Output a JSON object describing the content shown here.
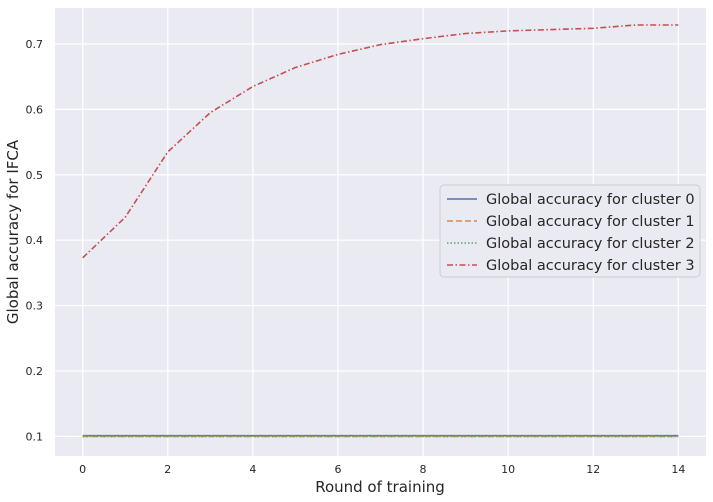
{
  "chart_data": {
    "type": "line",
    "xlabel": "Round of training",
    "ylabel": "Global accuracy for IFCA",
    "xlim": [
      -0.65,
      14.65
    ],
    "ylim": [
      0.07,
      0.755
    ],
    "xticks": [
      0,
      2,
      4,
      6,
      8,
      10,
      12,
      14
    ],
    "yticks": [
      0.1,
      0.2,
      0.3,
      0.4,
      0.5,
      0.6,
      0.7
    ],
    "xtick_labels": [
      "0",
      "2",
      "4",
      "6",
      "8",
      "10",
      "12",
      "14"
    ],
    "ytick_labels": [
      "0.1",
      "0.2",
      "0.3",
      "0.4",
      "0.5",
      "0.6",
      "0.7"
    ],
    "grid": true,
    "legend_position": "center-right",
    "x": [
      0,
      1,
      2,
      3,
      4,
      5,
      6,
      7,
      8,
      9,
      10,
      11,
      12,
      13,
      14
    ],
    "series": [
      {
        "name": "Global accuracy for cluster 0",
        "color": "#4c72b0",
        "dash": "solid",
        "values": [
          0.101,
          0.101,
          0.101,
          0.101,
          0.101,
          0.101,
          0.101,
          0.101,
          0.101,
          0.101,
          0.101,
          0.101,
          0.101,
          0.101,
          0.101
        ]
      },
      {
        "name": "Global accuracy for cluster 1",
        "color": "#dd8452",
        "dash": "dashed",
        "values": [
          0.1,
          0.1,
          0.1,
          0.1,
          0.1,
          0.1,
          0.1,
          0.1,
          0.1,
          0.1,
          0.1,
          0.1,
          0.1,
          0.1,
          0.1
        ]
      },
      {
        "name": "Global accuracy for cluster 2",
        "color": "#55a868",
        "dash": "dotted",
        "values": [
          0.1,
          0.1,
          0.1,
          0.1,
          0.1,
          0.1,
          0.1,
          0.1,
          0.1,
          0.1,
          0.1,
          0.1,
          0.1,
          0.1,
          0.1
        ]
      },
      {
        "name": "Global accuracy for cluster 3",
        "color": "#c44e52",
        "dash": "dashdot",
        "values": [
          0.373,
          0.435,
          0.535,
          0.595,
          0.635,
          0.664,
          0.684,
          0.699,
          0.708,
          0.716,
          0.72,
          0.722,
          0.724,
          0.729,
          0.729
        ]
      }
    ]
  }
}
